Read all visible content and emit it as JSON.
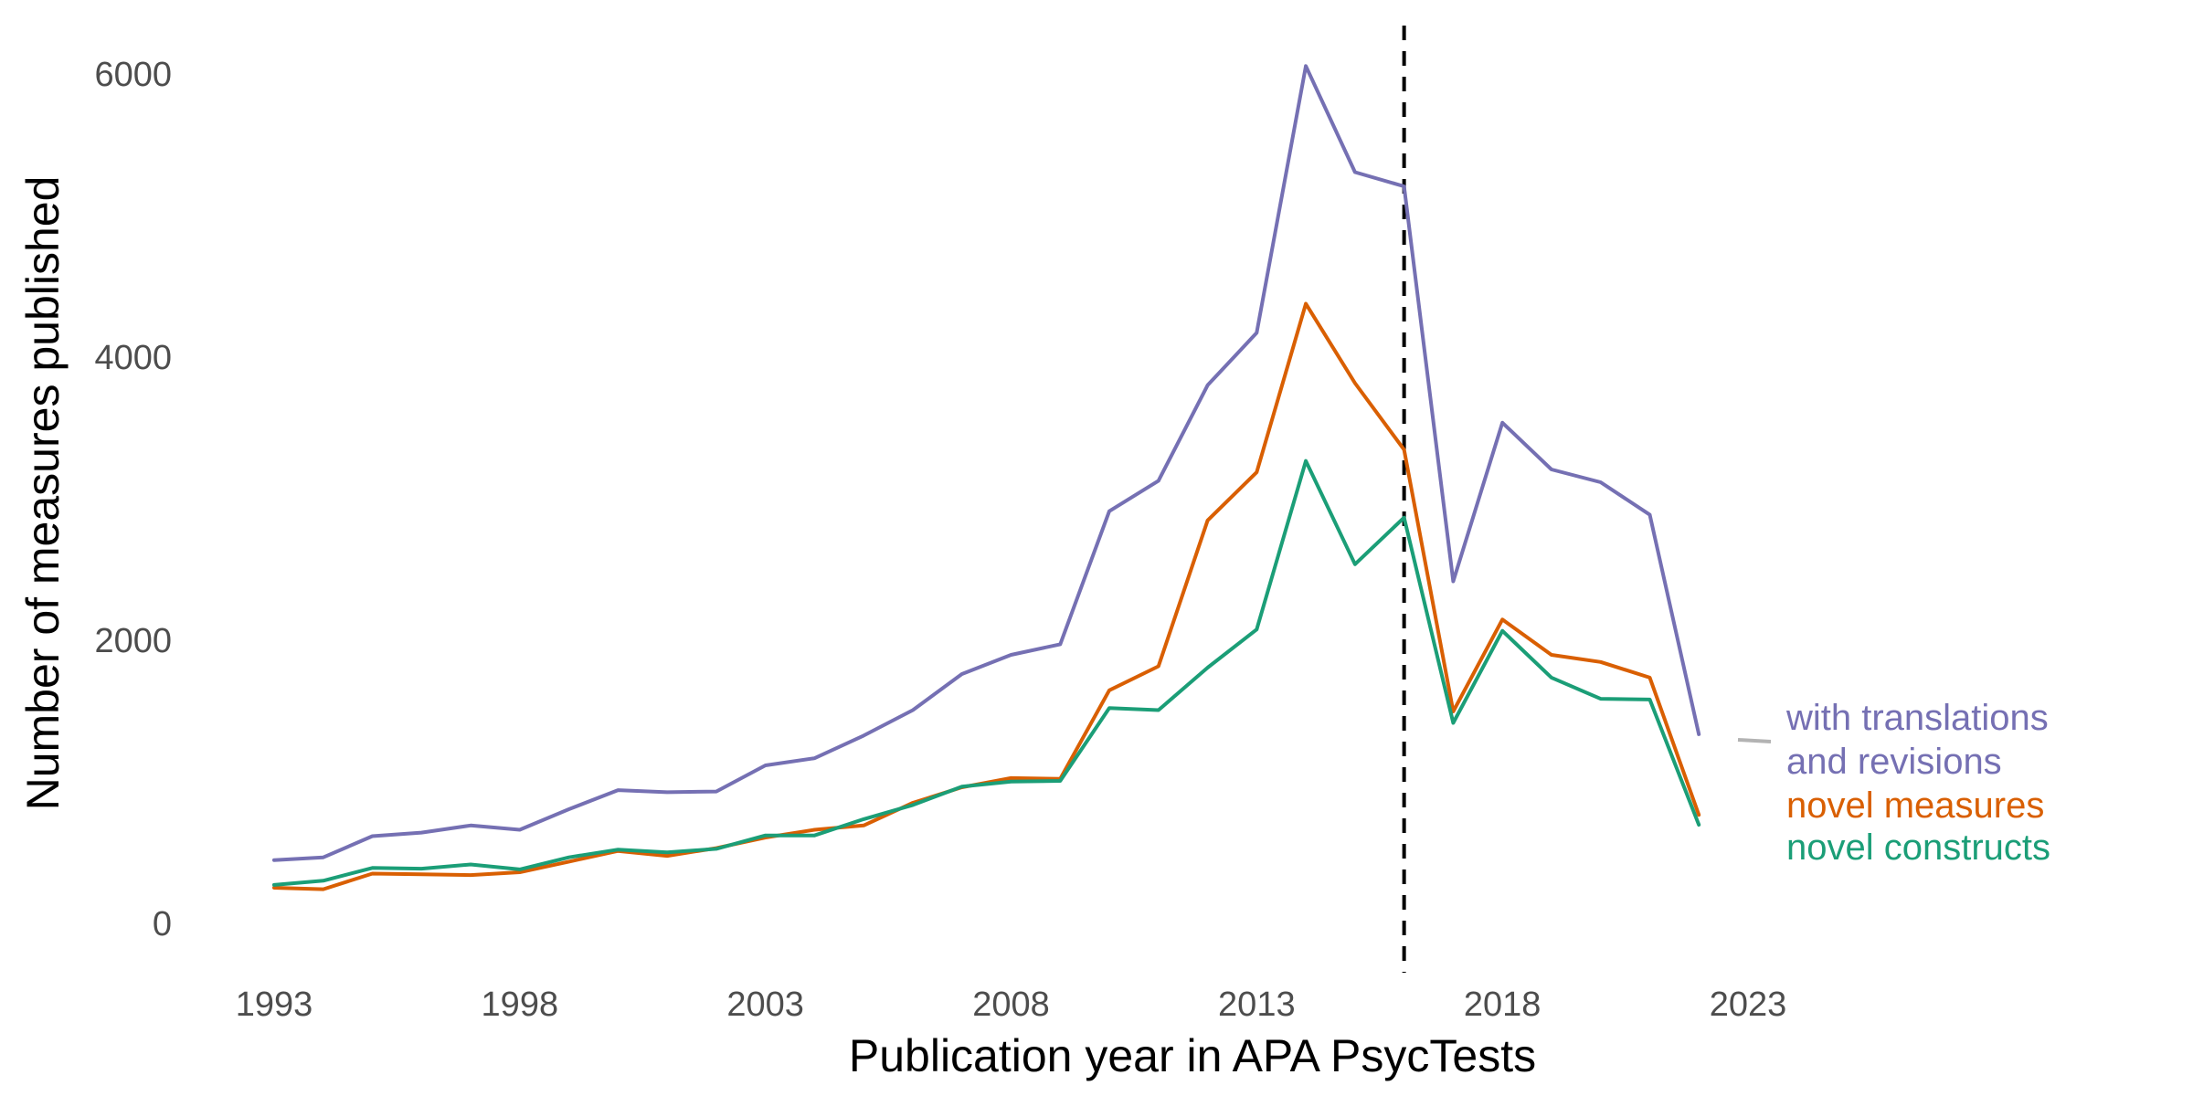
{
  "chart_data": {
    "type": "line",
    "title": "",
    "xlabel": "Publication year in APA PsycTests",
    "ylabel": "Number of measures published",
    "xlim": [
      1993,
      2023
    ],
    "ylim": [
      0,
      6000
    ],
    "x_ticks": [
      "1993",
      "1998",
      "2003",
      "2008",
      "2013",
      "2018",
      "2023"
    ],
    "y_ticks": [
      "0",
      "2000",
      "4000",
      "6000"
    ],
    "grid": false,
    "legend_position": "right, at line ends",
    "reference_line": {
      "x": 2016,
      "style": "dashed",
      "color": "#000000"
    },
    "x": [
      1993,
      1994,
      1995,
      1996,
      1997,
      1998,
      1999,
      2000,
      2001,
      2002,
      2003,
      2004,
      2005,
      2006,
      2007,
      2008,
      2009,
      2010,
      2011,
      2012,
      2013,
      2014,
      2015,
      2016,
      2017,
      2018,
      2019,
      2020,
      2021,
      2022
    ],
    "series": [
      {
        "name": "with translations and revisions",
        "label_lines": [
          "with translations",
          "and revisions"
        ],
        "color": "#7570b3",
        "values": [
          440,
          460,
          610,
          635,
          685,
          655,
          800,
          935,
          920,
          925,
          1110,
          1160,
          1320,
          1500,
          1755,
          1890,
          1965,
          2905,
          3120,
          3795,
          4165,
          6050,
          5300,
          5200,
          2410,
          3530,
          3200,
          3110,
          2880,
          1330
        ]
      },
      {
        "name": "novel measures",
        "label_lines": [
          "novel measures"
        ],
        "color": "#d95f02",
        "values": [
          245,
          235,
          345,
          340,
          335,
          355,
          430,
          505,
          470,
          525,
          600,
          655,
          685,
          845,
          955,
          1020,
          1015,
          1640,
          1810,
          2840,
          3180,
          4370,
          3810,
          3340,
          1490,
          2140,
          1890,
          1840,
          1730,
          760
        ]
      },
      {
        "name": "novel constructs",
        "label_lines": [
          "novel constructs"
        ],
        "color": "#1b9e77",
        "values": [
          265,
          295,
          385,
          380,
          410,
          375,
          460,
          515,
          495,
          520,
          615,
          615,
          730,
          830,
          960,
          995,
          1000,
          1515,
          1500,
          1800,
          2070,
          3260,
          2530,
          2860,
          1410,
          2060,
          1730,
          1580,
          1575,
          690
        ]
      }
    ]
  }
}
